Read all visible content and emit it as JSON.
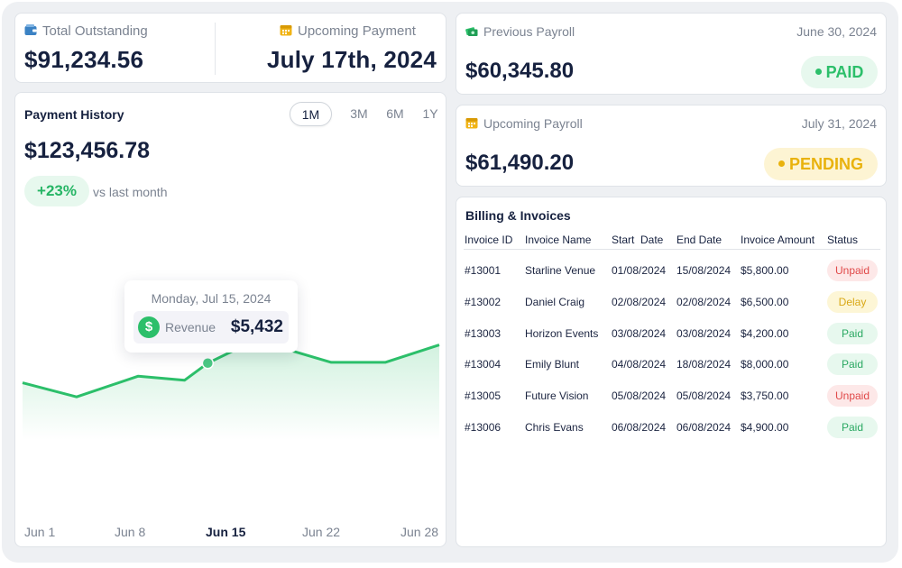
{
  "colors": {
    "accent_green": "#2cbf6a",
    "navy": "#16213f",
    "muted": "#7b8391",
    "paid_bg": "#e7f8ee",
    "pending_bg": "#fdf4d3",
    "pending_fg": "#e9b20c",
    "unpaid_fg": "#e04848"
  },
  "summary": {
    "outstanding_label": "Total Outstanding",
    "outstanding_icon": "wallet-icon",
    "outstanding_value": "$91,234.56",
    "upcoming_label": "Upcoming Payment",
    "upcoming_icon": "calendar-icon",
    "upcoming_value": "July 17th, 2024"
  },
  "payment_history": {
    "title": "Payment History",
    "ranges": [
      "1M",
      "3M",
      "6M",
      "1Y"
    ],
    "active_range": "1M",
    "total": "$123,456.78",
    "change": "+23%",
    "change_note": "vs last month",
    "tooltip": {
      "date": "Monday, Jul 15, 2024",
      "label": "Revenue",
      "value": "$5,432",
      "icon": "dollar-icon"
    }
  },
  "chart_data": {
    "type": "area",
    "x_tick_labels": [
      "Jun 1",
      "Jun 8",
      "Jun 15",
      "Jun 22",
      "Jun 28"
    ],
    "highlighted_tick": "Jun 15",
    "series": [
      {
        "values": [
          {
            "x": 0,
            "y": 4500
          },
          {
            "x": 3.5,
            "y": 4120
          },
          {
            "x": 7.5,
            "y": 4680
          },
          {
            "x": 10.5,
            "y": 4570
          },
          {
            "x": 12,
            "y": 5030
          },
          {
            "x": 14,
            "y": 5432
          },
          {
            "x": 15.5,
            "y": 5600
          },
          {
            "x": 20,
            "y": 5050
          },
          {
            "x": 23.5,
            "y": 5050
          },
          {
            "x": 27,
            "y": 5520
          }
        ]
      }
    ],
    "highlight_point": {
      "x": 12,
      "y": 5030
    },
    "ylim": [
      2000,
      8000
    ],
    "grid": false
  },
  "payrolls": [
    {
      "label": "Previous Payroll",
      "icon": "money-icon",
      "date": "June 30, 2024",
      "amount": "$60,345.80",
      "status": "PAID"
    },
    {
      "label": "Upcoming Payroll",
      "icon": "calendar-icon",
      "date": "July 31, 2024",
      "amount": "$61,490.20",
      "status": "PENDING"
    }
  ],
  "billing": {
    "title": "Billing & Invoices",
    "headers": [
      "Invoice ID",
      "Invoice Name",
      "Start  Date",
      "End Date",
      "Invoice Amount",
      "Status"
    ],
    "rows": [
      {
        "id": "#13001",
        "name": "Starline Venue",
        "start": "01/08/2024",
        "end": "15/08/2024",
        "amount": "$5,800.00",
        "status": "Unpaid",
        "kind": "unpaid"
      },
      {
        "id": "#13002",
        "name": "Daniel Craig",
        "start": "02/08/2024",
        "end": "02/08/2024",
        "amount": "$6,500.00",
        "status": "Delay",
        "kind": "delay"
      },
      {
        "id": "#13003",
        "name": "Horizon Events",
        "start": "03/08/2024",
        "end": "03/08/2024",
        "amount": "$4,200.00",
        "status": "Paid",
        "kind": "paid"
      },
      {
        "id": "#13004",
        "name": "Emily Blunt",
        "start": "04/08/2024",
        "end": "18/08/2024",
        "amount": "$8,000.00",
        "status": "Paid",
        "kind": "paid"
      },
      {
        "id": "#13005",
        "name": "Future Vision",
        "start": "05/08/2024",
        "end": "05/08/2024",
        "amount": "$3,750.00",
        "status": "Unpaid",
        "kind": "unpaid"
      },
      {
        "id": "#13006",
        "name": "Chris Evans",
        "start": "06/08/2024",
        "end": "06/08/2024",
        "amount": "$4,900.00",
        "status": "Paid",
        "kind": "paid"
      }
    ]
  }
}
